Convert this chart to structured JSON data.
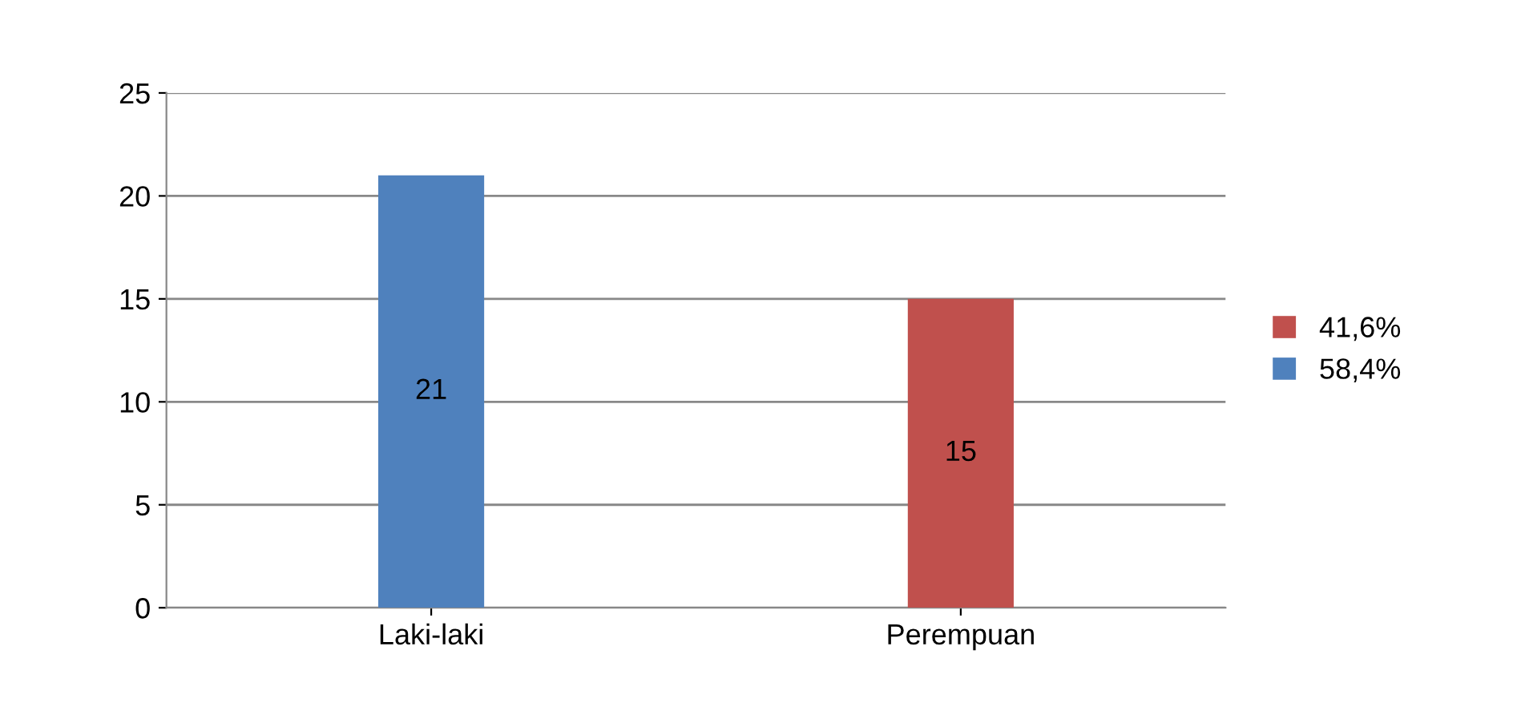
{
  "chart_data": {
    "type": "bar",
    "categories": [
      "Laki-laki",
      "Perempuan"
    ],
    "series": [
      {
        "name": "41,6%",
        "color": "#c0504d",
        "values": [
          null,
          15
        ]
      },
      {
        "name": "58,4%",
        "color": "#4f81bd",
        "values": [
          21,
          null
        ]
      }
    ],
    "ylim": [
      0,
      25
    ],
    "yticks": [
      0,
      5,
      10,
      15,
      20,
      25
    ],
    "grid": "y",
    "legend": "right",
    "data_labels": true
  }
}
